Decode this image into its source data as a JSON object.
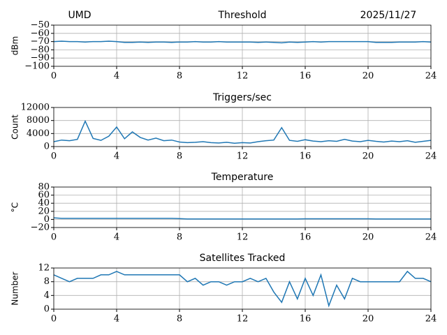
{
  "chart_data": [
    {
      "type": "line",
      "title": "Threshold",
      "annotations": [
        {
          "text": "UMD",
          "position": "left"
        },
        {
          "text": "2025/11/27",
          "position": "right"
        }
      ],
      "ylabel": "dBm",
      "color": "#1f77b4",
      "grid": true,
      "xlim": [
        0,
        24
      ],
      "xticks": [
        0,
        4,
        8,
        12,
        16,
        20,
        24
      ],
      "ylim": [
        -100,
        -50
      ],
      "yticks": [
        {
          "value": -100,
          "label": "−100"
        },
        {
          "value": -90,
          "label": "−90"
        },
        {
          "value": -80,
          "label": "−80"
        },
        {
          "value": -70,
          "label": "−70"
        },
        {
          "value": -60,
          "label": "−60"
        },
        {
          "value": -50,
          "label": "−50"
        }
      ],
      "x": [
        0,
        0.5,
        1,
        1.5,
        2,
        2.5,
        3,
        3.5,
        4,
        4.5,
        5,
        5.5,
        6,
        6.5,
        7,
        7.5,
        8,
        8.5,
        9,
        9.5,
        10,
        10.5,
        11,
        11.5,
        12,
        12.5,
        13,
        13.5,
        14,
        14.5,
        15,
        15.5,
        16,
        16.5,
        17,
        17.5,
        18,
        18.5,
        19,
        19.5,
        20,
        20.5,
        21,
        21.5,
        22,
        22.5,
        23,
        23.5,
        24
      ],
      "values": [
        -70,
        -69.5,
        -70,
        -70,
        -70.5,
        -70,
        -70,
        -69.5,
        -70,
        -71,
        -71,
        -70.5,
        -71,
        -70.5,
        -70.5,
        -71,
        -70.5,
        -70.5,
        -70,
        -70.5,
        -70.5,
        -70,
        -70.5,
        -70.5,
        -70.5,
        -70.5,
        -71,
        -70.5,
        -71,
        -71.5,
        -70.5,
        -71,
        -70.5,
        -70,
        -70.5,
        -70,
        -70,
        -70,
        -70,
        -70,
        -70,
        -71,
        -71,
        -71,
        -70.5,
        -70.5,
        -70.5,
        -70,
        -70.5
      ]
    },
    {
      "type": "line",
      "title": "Triggers/sec",
      "ylabel": "Count",
      "color": "#1f77b4",
      "grid": true,
      "xlim": [
        0,
        24
      ],
      "xticks": [
        0,
        4,
        8,
        12,
        16,
        20,
        24
      ],
      "ylim": [
        0,
        12000
      ],
      "yticks": [
        0,
        4000,
        8000,
        12000
      ],
      "x": [
        0,
        0.5,
        1,
        1.5,
        2,
        2.5,
        3,
        3.5,
        4,
        4.5,
        5,
        5.5,
        6,
        6.5,
        7,
        7.5,
        8,
        8.5,
        9,
        9.5,
        10,
        10.5,
        11,
        11.5,
        12,
        12.5,
        13,
        13.5,
        14,
        14.5,
        15,
        15.5,
        16,
        16.5,
        17,
        17.5,
        18,
        18.5,
        19,
        19.5,
        20,
        20.5,
        21,
        21.5,
        22,
        22.5,
        23,
        23.5,
        24
      ],
      "values": [
        1500,
        2000,
        1800,
        2200,
        7800,
        2500,
        1900,
        3200,
        6000,
        2400,
        4500,
        2800,
        2000,
        2600,
        1800,
        2000,
        1400,
        1200,
        1300,
        1500,
        1200,
        1100,
        1300,
        1000,
        1200,
        1100,
        1500,
        1800,
        2000,
        5800,
        1900,
        1600,
        2100,
        1700,
        1500,
        1800,
        1600,
        2200,
        1700,
        1500,
        1900,
        1600,
        1400,
        1700,
        1500,
        1800,
        1300,
        1600,
        1900
      ]
    },
    {
      "type": "line",
      "title": "Temperature",
      "ylabel": "°C",
      "color": "#1f77b4",
      "grid": true,
      "xlim": [
        0,
        24
      ],
      "xticks": [
        0,
        4,
        8,
        12,
        16,
        20,
        24
      ],
      "ylim": [
        -20,
        80
      ],
      "yticks": [
        {
          "value": -20,
          "label": "−20"
        },
        0,
        20,
        40,
        60,
        80
      ],
      "x": [
        0,
        0.5,
        1,
        1.5,
        2,
        2.5,
        3,
        3.5,
        4,
        4.5,
        5,
        5.5,
        6,
        6.5,
        7,
        7.5,
        8,
        8.5,
        9,
        9.5,
        10,
        10.5,
        11,
        11.5,
        12,
        12.5,
        13,
        13.5,
        14,
        14.5,
        15,
        15.5,
        16,
        16.5,
        17,
        17.5,
        18,
        18.5,
        19,
        19.5,
        20,
        20.5,
        21,
        21.5,
        22,
        22.5,
        23,
        23.5,
        24
      ],
      "values": [
        4,
        2.5,
        2.5,
        2.5,
        2.5,
        2.5,
        2.5,
        2.5,
        2.5,
        2.5,
        2.5,
        2.5,
        2.5,
        2.5,
        2.5,
        2.5,
        2,
        1,
        1,
        1,
        1,
        1,
        1,
        1,
        1,
        1,
        1,
        1,
        1,
        1,
        1,
        1,
        1.5,
        1.5,
        1.5,
        1.5,
        1.5,
        1.5,
        1.5,
        1.5,
        1.5,
        1,
        1,
        1,
        1,
        1,
        1,
        1,
        1
      ]
    },
    {
      "type": "line",
      "title": "Satellites Tracked",
      "ylabel": "Number",
      "color": "#1f77b4",
      "grid": true,
      "xlim": [
        0,
        24
      ],
      "xticks": [
        0,
        4,
        8,
        12,
        16,
        20,
        24
      ],
      "ylim": [
        0,
        12
      ],
      "yticks": [
        0,
        4,
        8,
        12
      ],
      "x": [
        0,
        0.5,
        1,
        1.5,
        2,
        2.5,
        3,
        3.5,
        4,
        4.5,
        5,
        5.5,
        6,
        6.5,
        7,
        7.5,
        8,
        8.5,
        9,
        9.5,
        10,
        10.5,
        11,
        11.5,
        12,
        12.5,
        13,
        13.5,
        14,
        14.5,
        15,
        15.5,
        16,
        16.5,
        17,
        17.5,
        18,
        18.5,
        19,
        19.5,
        20,
        20.5,
        21,
        21.5,
        22,
        22.5,
        23,
        23.5,
        24
      ],
      "values": [
        10,
        9,
        8,
        9,
        9,
        9,
        10,
        10,
        11,
        10,
        10,
        10,
        10,
        10,
        10,
        10,
        10,
        8,
        9,
        7,
        8,
        8,
        7,
        8,
        8,
        9,
        8,
        9,
        5,
        2,
        8,
        3,
        9,
        4,
        10,
        1,
        7,
        3,
        9,
        8,
        8,
        8,
        8,
        8,
        8,
        11,
        9,
        9,
        8
      ]
    }
  ]
}
